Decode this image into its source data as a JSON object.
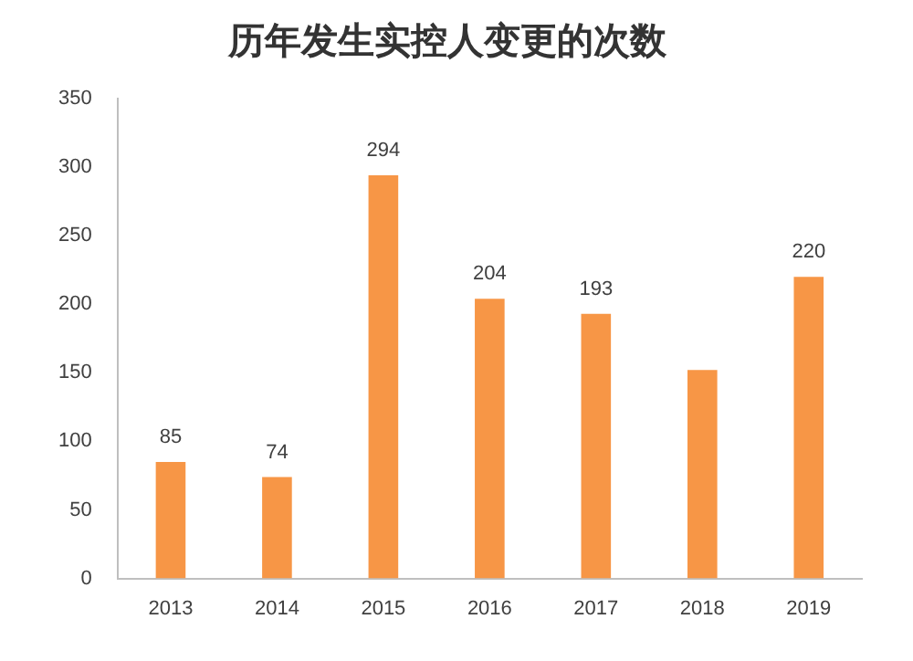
{
  "chart_data": {
    "type": "bar",
    "title": "历年发生实控人变更的次数",
    "categories": [
      "2013",
      "2014",
      "2015",
      "2016",
      "2017",
      "2018",
      "2019"
    ],
    "values": [
      85,
      74,
      294,
      204,
      193,
      152,
      220
    ],
    "value_labels": [
      "85",
      "74",
      "294",
      "204",
      "193",
      null,
      "220"
    ],
    "color": "#f79646",
    "ylim": [
      0,
      350
    ],
    "yticks": [
      0,
      50,
      100,
      150,
      200,
      250,
      300,
      350
    ],
    "grid": false
  }
}
